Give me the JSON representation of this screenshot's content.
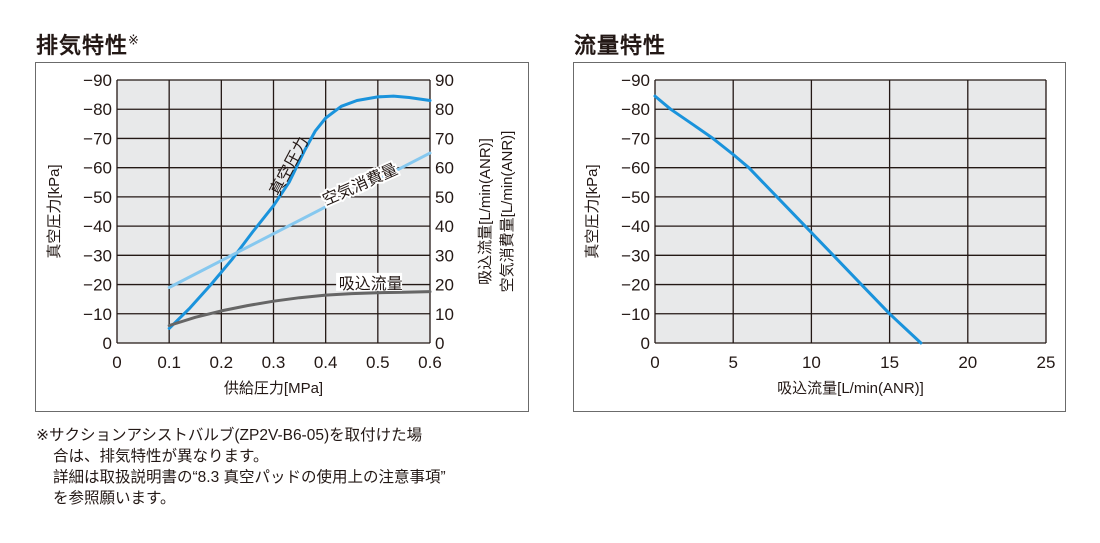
{
  "exhaust": {
    "title": "排気特性",
    "title_mark": "※",
    "note_lines": [
      "※サクションアシストバルブ(ZP2V-B6-05)を取付けた場",
      "合は、排気特性が異なります。",
      "詳細は取扱説明書の“8.3 真空パッドの使用上の注意事項”",
      "を参照願います。"
    ]
  },
  "flow": {
    "title": "流量特性"
  },
  "colors": {
    "vacuum": "#1a93dc",
    "air": "#86c8ef",
    "suction": "#666666",
    "grid": "#231815",
    "plot_bg": "#e8e9ea"
  },
  "chart_data": [
    {
      "type": "line",
      "title": "排気特性",
      "xlabel": "供給圧力[MPa]",
      "ylabel": "真空圧力[kPa]",
      "y2label_lines": [
        "吸込流量[L/min(ANR)]",
        "空気消費量[L/min(ANR)]"
      ],
      "xlim": [
        0,
        0.6
      ],
      "ylim": [
        0,
        90
      ],
      "grid": true,
      "x_ticks": [
        "0",
        "0.1",
        "0.2",
        "0.3",
        "0.4",
        "0.5",
        "0.6"
      ],
      "y_ticks": [
        "0",
        "−10",
        "−20",
        "−30",
        "−40",
        "−50",
        "−60",
        "−70",
        "−80",
        "−90"
      ],
      "y2_ticks": [
        "0",
        "10",
        "20",
        "30",
        "40",
        "50",
        "60",
        "70",
        "80",
        "90"
      ],
      "series": [
        {
          "name": "真空圧力",
          "color": "#1a93dc",
          "x": [
            0.1,
            0.14,
            0.18,
            0.22,
            0.26,
            0.3,
            0.33,
            0.36,
            0.38,
            0.4,
            0.43,
            0.46,
            0.5,
            0.53,
            0.56,
            0.6
          ],
          "y": [
            5,
            12,
            20,
            28.5,
            38,
            47,
            55,
            66,
            72.5,
            77,
            81,
            83,
            84.2,
            84.5,
            84,
            83
          ]
        },
        {
          "name": "空気消費量",
          "color": "#86c8ef",
          "x": [
            0.1,
            0.6
          ],
          "y": [
            19,
            65
          ]
        },
        {
          "name": "吸込流量",
          "color": "#666666",
          "x": [
            0.1,
            0.15,
            0.2,
            0.25,
            0.3,
            0.35,
            0.4,
            0.45,
            0.5,
            0.55,
            0.6
          ],
          "y": [
            6,
            8.8,
            11,
            12.8,
            14.3,
            15.5,
            16.4,
            16.9,
            17.2,
            17.4,
            17.6
          ]
        }
      ]
    },
    {
      "type": "line",
      "title": "流量特性",
      "xlabel": "吸込流量[L/min(ANR)]",
      "ylabel": "真空圧力[kPa]",
      "xlim": [
        0,
        25
      ],
      "ylim": [
        0,
        90
      ],
      "grid": true,
      "x_ticks": [
        "0",
        "5",
        "10",
        "15",
        "20",
        "25"
      ],
      "y_ticks": [
        "0",
        "−10",
        "−20",
        "−30",
        "−40",
        "−50",
        "−60",
        "−70",
        "−80",
        "−90"
      ],
      "series": [
        {
          "name": "真空圧力",
          "color": "#1a93dc",
          "x": [
            0,
            1,
            2.5,
            3.7,
            5,
            6,
            7.8,
            9.6,
            11.4,
            13.2,
            15,
            16,
            17
          ],
          "y": [
            84.5,
            80,
            74.5,
            70,
            64.5,
            60,
            50,
            40,
            30,
            20,
            10,
            5,
            0
          ]
        }
      ]
    }
  ]
}
